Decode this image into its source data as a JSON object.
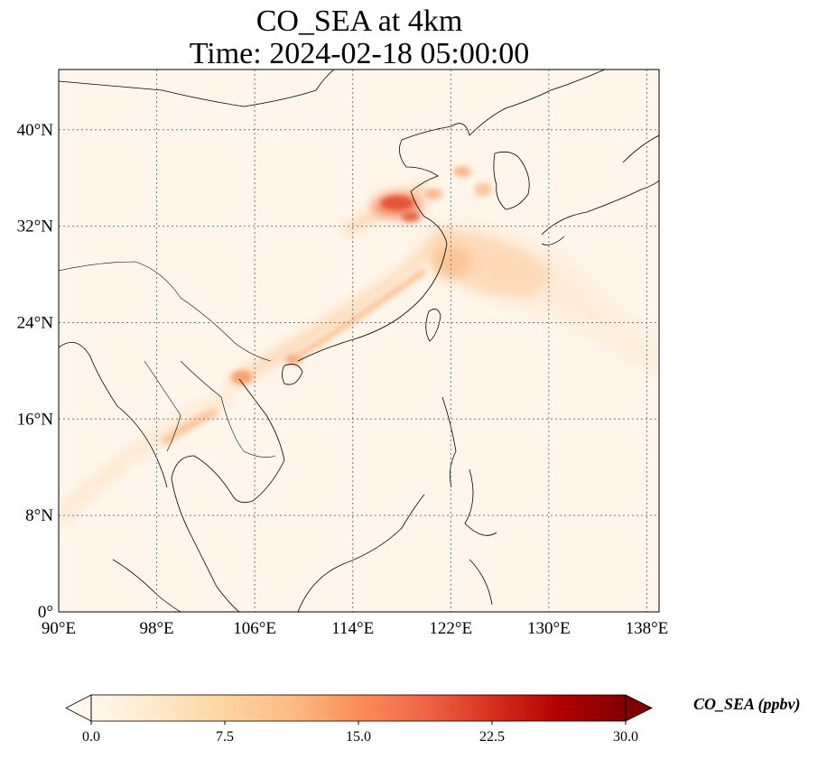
{
  "title": {
    "line1": "CO_SEA at 4km",
    "line2": "Time: 2024-02-18 05:00:00"
  },
  "map": {
    "lon_range": [
      90,
      139
    ],
    "lat_range": [
      0,
      45
    ],
    "lon_ticks": [
      {
        "value": 90,
        "label": "90°E"
      },
      {
        "value": 98,
        "label": "98°E"
      },
      {
        "value": 106,
        "label": "106°E"
      },
      {
        "value": 114,
        "label": "114°E"
      },
      {
        "value": 122,
        "label": "122°E"
      },
      {
        "value": 130,
        "label": "130°E"
      },
      {
        "value": 138,
        "label": "138°E"
      }
    ],
    "lat_ticks": [
      {
        "value": 0,
        "label": "0°"
      },
      {
        "value": 8,
        "label": "8°N"
      },
      {
        "value": 16,
        "label": "16°N"
      },
      {
        "value": 24,
        "label": "24°N"
      },
      {
        "value": 32,
        "label": "32°N"
      },
      {
        "value": 40,
        "label": "40°N"
      }
    ],
    "gridlines": true,
    "background_color": "#fff5eb"
  },
  "colorbar": {
    "label": "CO_SEA (ppbv)",
    "min": 0.0,
    "max": 30.0,
    "extend": "both",
    "colormap": "OrRd",
    "ticks": [
      {
        "value": 0.0,
        "label": "0.0"
      },
      {
        "value": 7.5,
        "label": "7.5"
      },
      {
        "value": 15.0,
        "label": "15.0"
      },
      {
        "value": 22.5,
        "label": "22.5"
      },
      {
        "value": 30.0,
        "label": "30.0"
      }
    ]
  }
}
